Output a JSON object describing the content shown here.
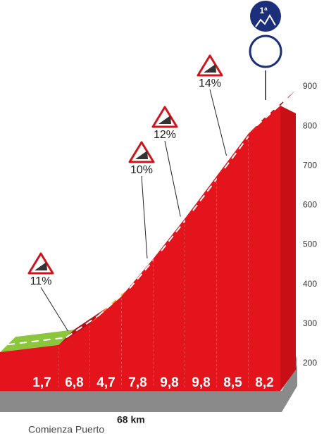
{
  "chart_data": {
    "type": "profile",
    "category": "1ª",
    "ylim": [
      200,
      900
    ],
    "yticks": [
      200,
      300,
      400,
      500,
      600,
      700,
      800,
      900
    ],
    "values": [
      1.7,
      6.8,
      4.7,
      7.8,
      9.8,
      9.8,
      8.5,
      8.2
    ],
    "value_labels": [
      "1,7",
      "6,8",
      "4,7",
      "7,8",
      "9,8",
      "9,8",
      "8,5",
      "8,2"
    ],
    "colors": [
      "#8cc63f",
      "#b8101a",
      "#f4a81d",
      "#b8101a",
      "#3b0a0a",
      "#3b0a0a",
      "#b8101a",
      "#b8101a"
    ],
    "elevations": [
      228,
      246,
      300,
      370,
      465,
      567,
      674,
      781,
      852
    ],
    "annotations": [
      "11%",
      "10%",
      "12%",
      "14%"
    ],
    "start_label": "Comienza Puerto",
    "start_distance": "68 km"
  }
}
